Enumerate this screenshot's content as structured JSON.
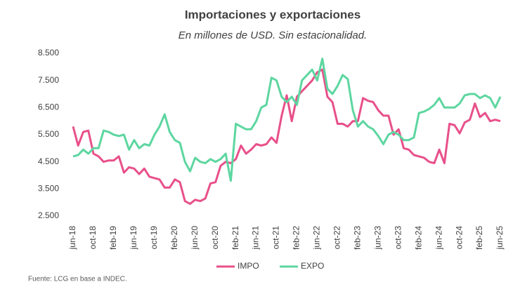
{
  "chart_data": {
    "type": "line",
    "title": "Importaciones y exportaciones",
    "subtitle": "En millones de USD. Sin estacionalidad.",
    "source": "Fuente: LCG en base a INDEC.",
    "categories": [
      "jun-18",
      null,
      null,
      null,
      "oct-18",
      null,
      null,
      null,
      "feb-19",
      null,
      null,
      null,
      "jun-19",
      null,
      null,
      null,
      "oct-19",
      null,
      null,
      null,
      "feb-20",
      null,
      null,
      null,
      "jun-20",
      null,
      null,
      null,
      "oct-20",
      null,
      null,
      null,
      "feb-21",
      null,
      null,
      null,
      "jun-21",
      null,
      null,
      null,
      "oct-21",
      null,
      null,
      null,
      "feb-22",
      null,
      null,
      null,
      "jun-22",
      null,
      null,
      null,
      "oct-22",
      null,
      null,
      null,
      "feb-23",
      null,
      null,
      null,
      "jun-23",
      null,
      null,
      null,
      "oct-23",
      null,
      null,
      null,
      "feb-24",
      null,
      null,
      null,
      "jun-24",
      null,
      null,
      null,
      "oct-24",
      null,
      null,
      null,
      "feb-25",
      null,
      null,
      null,
      "jun-25"
    ],
    "series": [
      {
        "name": "IMPO",
        "color": "#e8508a",
        "values": [
          5800,
          5100,
          5600,
          5650,
          4800,
          4700,
          4500,
          4550,
          4550,
          4700,
          4100,
          4300,
          4250,
          4050,
          4250,
          3950,
          3900,
          3850,
          3550,
          3550,
          3850,
          3750,
          3050,
          2950,
          3100,
          3050,
          3150,
          3700,
          3750,
          4350,
          4500,
          4450,
          4600,
          5100,
          4800,
          4950,
          5150,
          5100,
          5150,
          5400,
          5200,
          6200,
          6950,
          6000,
          6900,
          7100,
          7300,
          7500,
          7800,
          7900,
          6900,
          6700,
          5900,
          5900,
          5800,
          6000,
          6000,
          6850,
          6750,
          6700,
          6400,
          6200,
          6200,
          5500,
          5700,
          5000,
          4950,
          4750,
          4700,
          4650,
          4500,
          4450,
          4950,
          4450,
          5900,
          5850,
          5550,
          5950,
          6050,
          6650,
          6150,
          6300,
          6000,
          6050,
          6000
        ]
      },
      {
        "name": "EXPO",
        "color": "#5dd6a0",
        "values": [
          4700,
          4750,
          4950,
          4800,
          5000,
          5000,
          5650,
          5600,
          5500,
          5450,
          5500,
          4950,
          5300,
          5000,
          5150,
          5100,
          5500,
          5800,
          6250,
          5600,
          5300,
          5200,
          4500,
          4150,
          4650,
          4500,
          4450,
          4600,
          4500,
          4600,
          4800,
          3800,
          5900,
          5800,
          5700,
          5700,
          6000,
          6500,
          6600,
          7600,
          7500,
          6900,
          6700,
          6900,
          6600,
          7500,
          7700,
          7900,
          7500,
          8300,
          7200,
          7000,
          7300,
          7700,
          7550,
          6400,
          5800,
          6000,
          5800,
          5700,
          5450,
          5150,
          5500,
          5600,
          5500,
          5300,
          5300,
          5400,
          6300,
          6350,
          6450,
          6600,
          6850,
          6500,
          6500,
          6500,
          6650,
          6950,
          7000,
          7000,
          6850,
          6950,
          6850,
          6500,
          6900
        ]
      }
    ],
    "ylim": [
      2500,
      8500
    ],
    "yticks": [
      {
        "value": 2500,
        "label": "2.500"
      },
      {
        "value": 3500,
        "label": "3.500"
      },
      {
        "value": 4500,
        "label": "4.500"
      },
      {
        "value": 5500,
        "label": "5.500"
      },
      {
        "value": 6500,
        "label": "6.500"
      },
      {
        "value": 7500,
        "label": "7.500"
      },
      {
        "value": 8500,
        "label": "8.500"
      }
    ],
    "grid": false
  }
}
